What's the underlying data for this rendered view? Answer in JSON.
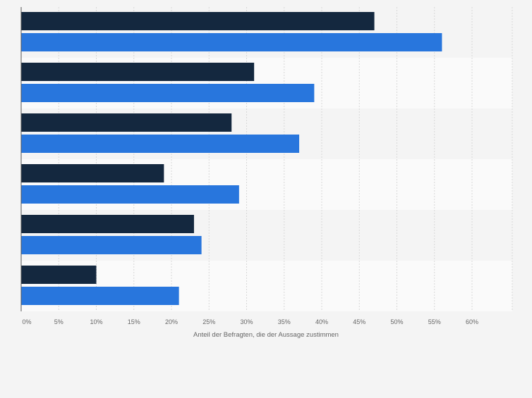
{
  "colors": {
    "background": "#f4f4f4",
    "band_alt": "#fafafa",
    "series_dark": "#14283f",
    "series_blue": "#2876dd",
    "gridline": "#d8d8d8",
    "axis": "#555555",
    "tick_text": "#666666"
  },
  "chart_data": {
    "type": "bar",
    "orientation": "horizontal",
    "xlabel": "Anteil der Befragten, die der Aussage zustimmen",
    "ylabel": "",
    "xlim": [
      0,
      65
    ],
    "x_ticks": [
      0,
      5,
      10,
      15,
      20,
      25,
      30,
      35,
      40,
      45,
      50,
      55,
      60
    ],
    "x_tick_labels": [
      "0%",
      "5%",
      "10%",
      "15%",
      "20%",
      "25%",
      "30%",
      "35%",
      "40%",
      "45%",
      "50%",
      "55%",
      "60%"
    ],
    "grid": true,
    "legend": "none",
    "categories": [
      "",
      "",
      "",
      "",
      "",
      ""
    ],
    "series": [
      {
        "color": "#14283f",
        "values": [
          47,
          31,
          28,
          19,
          23,
          10
        ]
      },
      {
        "color": "#2876dd",
        "values": [
          56,
          39,
          37,
          29,
          24,
          21
        ]
      }
    ]
  }
}
